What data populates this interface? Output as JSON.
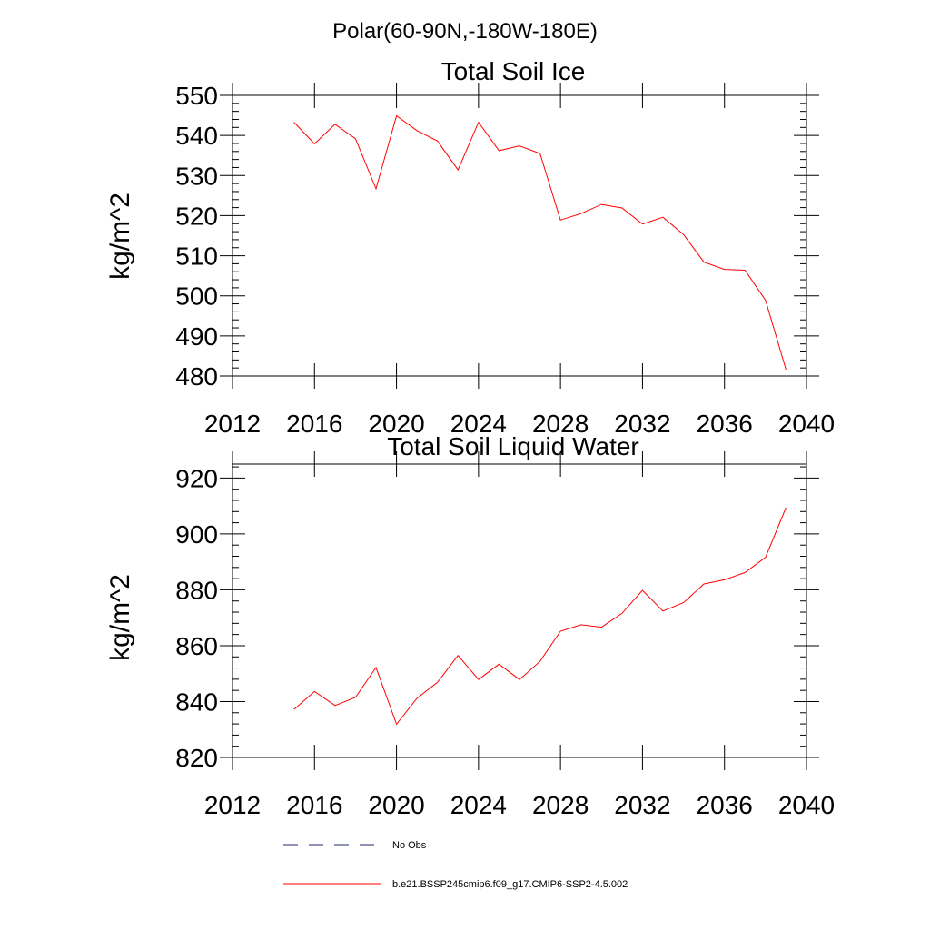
{
  "suptitle": "Polar(60-90N,-180W-180E)",
  "chart_data": [
    {
      "type": "line",
      "title": "Total Soil Ice",
      "xlabel": "",
      "ylabel": "kg/m^2",
      "xlim": [
        2012,
        2040
      ],
      "ylim": [
        480,
        550
      ],
      "xticks": [
        2012,
        2016,
        2020,
        2024,
        2028,
        2032,
        2036,
        2040
      ],
      "yticks": [
        480,
        490,
        500,
        510,
        520,
        530,
        540,
        550
      ],
      "series": [
        {
          "name": "b.e21.BSSP245cmip6.f09_g17.CMIP6-SSP2-4.5.002",
          "color": "#ff0000",
          "x": [
            2015,
            2016,
            2017,
            2018,
            2019,
            2020,
            2021,
            2022,
            2023,
            2024,
            2025,
            2026,
            2027,
            2028,
            2029,
            2030,
            2031,
            2032,
            2033,
            2034,
            2035,
            2036,
            2037,
            2038,
            2039
          ],
          "values": [
            543.3,
            537.9,
            542.8,
            539.2,
            526.7,
            544.9,
            541.2,
            538.6,
            531.4,
            543.3,
            536.2,
            537.4,
            535.5,
            518.9,
            520.5,
            522.8,
            521.9,
            517.9,
            519.6,
            515.3,
            508.4,
            506.6,
            506.4,
            498.9,
            481.6
          ]
        }
      ]
    },
    {
      "type": "line",
      "title": "Total Soil Liquid Water",
      "xlabel": "",
      "ylabel": "kg/m^2",
      "xlim": [
        2012,
        2040
      ],
      "ylim": [
        820,
        925
      ],
      "xticks": [
        2012,
        2016,
        2020,
        2024,
        2028,
        2032,
        2036,
        2040
      ],
      "yticks": [
        820,
        840,
        860,
        880,
        900,
        920
      ],
      "series": [
        {
          "name": "b.e21.BSSP245cmip6.f09_g17.CMIP6-SSP2-4.5.002",
          "color": "#ff0000",
          "x": [
            2015,
            2016,
            2017,
            2018,
            2019,
            2020,
            2021,
            2022,
            2023,
            2024,
            2025,
            2026,
            2027,
            2028,
            2029,
            2030,
            2031,
            2032,
            2033,
            2034,
            2035,
            2036,
            2037,
            2038,
            2039
          ],
          "values": [
            837.2,
            843.6,
            838.6,
            841.5,
            852.2,
            831.9,
            841.2,
            846.9,
            856.5,
            847.9,
            853.4,
            847.9,
            854.4,
            865.2,
            867.5,
            866.6,
            871.6,
            879.8,
            872.4,
            875.4,
            882.1,
            883.6,
            886.2,
            891.6,
            909.4
          ]
        }
      ]
    }
  ],
  "legend": [
    {
      "label": "No Obs",
      "color": "#1f2a6b",
      "style": "dashed"
    },
    {
      "label": "b.e21.BSSP245cmip6.f09_g17.CMIP6-SSP2-4.5.002",
      "color": "#ff0000",
      "style": "solid"
    }
  ]
}
